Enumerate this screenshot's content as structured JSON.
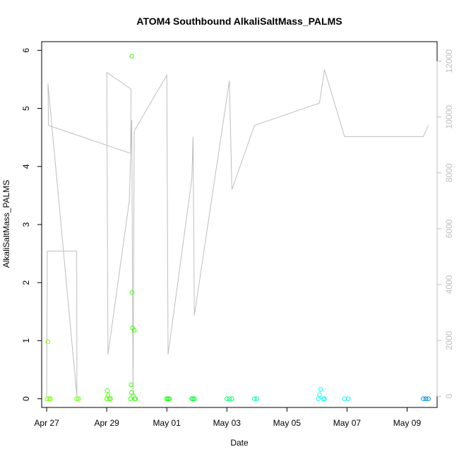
{
  "chart_data": {
    "type": "scatter",
    "title": "ATOM4 Southbound AlkaliSaltMass_PALMS",
    "xlabel": "Date",
    "ylabel": "AlkaliSaltMass_PALMS",
    "x_ticks": [
      "Apr 27",
      "Apr 29",
      "May 01",
      "May 03",
      "May 05",
      "May 07",
      "May 09"
    ],
    "y_ticks": [
      "0",
      "1",
      "2",
      "3",
      "4",
      "5",
      "6"
    ],
    "y2_ticks": [
      "0",
      "2000",
      "4000",
      "6000",
      "8000",
      "10000",
      "12000"
    ],
    "xlim": [
      "Apr 26 20:00",
      "May 10 00:00"
    ],
    "ylim": [
      -0.15,
      6.15
    ],
    "y2lim": [
      -400,
      12700
    ],
    "grid": false,
    "series": [
      {
        "type": "scatter",
        "color_scale": "green to blue by date",
        "points": [
          {
            "x": "Apr 27 00:30",
            "y": 0.0
          },
          {
            "x": "Apr 27 01:00",
            "y": 0.98
          },
          {
            "x": "Apr 27 02:00",
            "y": 0.0
          },
          {
            "x": "Apr 27 03:00",
            "y": 0.0
          },
          {
            "x": "Apr 28 00:00",
            "y": 0.0
          },
          {
            "x": "Apr 28 01:30",
            "y": 0.0
          },
          {
            "x": "Apr 29 00:00",
            "y": 0.0
          },
          {
            "x": "Apr 29 00:30",
            "y": 0.14
          },
          {
            "x": "Apr 29 01:00",
            "y": 0.06
          },
          {
            "x": "Apr 29 02:00",
            "y": 0.0
          },
          {
            "x": "Apr 29 03:00",
            "y": 0.0
          },
          {
            "x": "Apr 29 19:00",
            "y": 0.0
          },
          {
            "x": "Apr 29 19:30",
            "y": 0.24
          },
          {
            "x": "Apr 29 19:45",
            "y": 0.11
          },
          {
            "x": "Apr 29 20:00",
            "y": 5.9
          },
          {
            "x": "Apr 29 20:10",
            "y": 1.83
          },
          {
            "x": "Apr 29 20:30",
            "y": 1.22
          },
          {
            "x": "Apr 29 21:00",
            "y": 0.05
          },
          {
            "x": "Apr 29 22:00",
            "y": 1.18
          },
          {
            "x": "Apr 29 22:30",
            "y": 0.0
          },
          {
            "x": "Apr 29 23:00",
            "y": 0.0
          },
          {
            "x": "May 01 00:00",
            "y": 0.0
          },
          {
            "x": "May 01 01:00",
            "y": 0.0
          },
          {
            "x": "May 01 02:00",
            "y": 0.0
          },
          {
            "x": "May 01 20:00",
            "y": 0.0
          },
          {
            "x": "May 01 21:00",
            "y": 0.0
          },
          {
            "x": "May 01 22:00",
            "y": 0.0
          },
          {
            "x": "May 03 00:00",
            "y": 0.0
          },
          {
            "x": "May 03 02:00",
            "y": 0.0
          },
          {
            "x": "May 03 04:00",
            "y": 0.0
          },
          {
            "x": "May 03 22:00",
            "y": 0.0
          },
          {
            "x": "May 04 00:00",
            "y": 0.0
          },
          {
            "x": "May 06 01:00",
            "y": 0.0
          },
          {
            "x": "May 06 02:00",
            "y": 0.07
          },
          {
            "x": "May 06 03:00",
            "y": 0.16
          },
          {
            "x": "May 06 05:00",
            "y": 0.0
          },
          {
            "x": "May 06 06:00",
            "y": 0.0
          },
          {
            "x": "May 06 22:00",
            "y": 0.0
          },
          {
            "x": "May 07 01:00",
            "y": 0.0
          },
          {
            "x": "May 09 13:00",
            "y": 0.0
          },
          {
            "x": "May 09 15:00",
            "y": 0.0
          },
          {
            "x": "May 09 17:00",
            "y": 0.0
          }
        ]
      },
      {
        "type": "line",
        "axis": "right",
        "color": "#bebebe",
        "points": [
          {
            "x": "Apr 27 00:00",
            "y": 0
          },
          {
            "x": "Apr 27 00:30",
            "y": 5200
          },
          {
            "x": "Apr 28 00:00",
            "y": 5200
          },
          {
            "x": "Apr 28 00:10",
            "y": 0
          },
          {
            "x": "Apr 27 01:00",
            "y": 11200
          },
          {
            "x": "Apr 27 01:30",
            "y": 9700
          },
          {
            "x": "Apr 29 19:00",
            "y": 8700
          },
          {
            "x": "Apr 29 19:30",
            "y": 11000
          },
          {
            "x": "Apr 29 00:00",
            "y": 11600
          },
          {
            "x": "Apr 29 01:00",
            "y": 1500
          },
          {
            "x": "Apr 29 18:00",
            "y": 7000
          },
          {
            "x": "Apr 29 20:00",
            "y": 9900
          },
          {
            "x": "Apr 29 21:00",
            "y": 0
          },
          {
            "x": "Apr 29 22:00",
            "y": 9500
          },
          {
            "x": "May 01 00:00",
            "y": 11500
          },
          {
            "x": "May 01 01:00",
            "y": 1500
          },
          {
            "x": "May 01 20:00",
            "y": 7800
          },
          {
            "x": "May 01 21:00",
            "y": 9300
          },
          {
            "x": "May 01 22:00",
            "y": 2900
          },
          {
            "x": "May 03 00:00",
            "y": 10700
          },
          {
            "x": "May 03 02:00",
            "y": 11300
          },
          {
            "x": "May 03 04:00",
            "y": 7400
          },
          {
            "x": "May 03 22:00",
            "y": 9700
          },
          {
            "x": "May 06 02:00",
            "y": 10500
          },
          {
            "x": "May 06 06:00",
            "y": 11700
          },
          {
            "x": "May 06 22:00",
            "y": 9300
          },
          {
            "x": "May 09 13:00",
            "y": 9300
          },
          {
            "x": "May 09 17:00",
            "y": 9700
          }
        ]
      }
    ]
  }
}
